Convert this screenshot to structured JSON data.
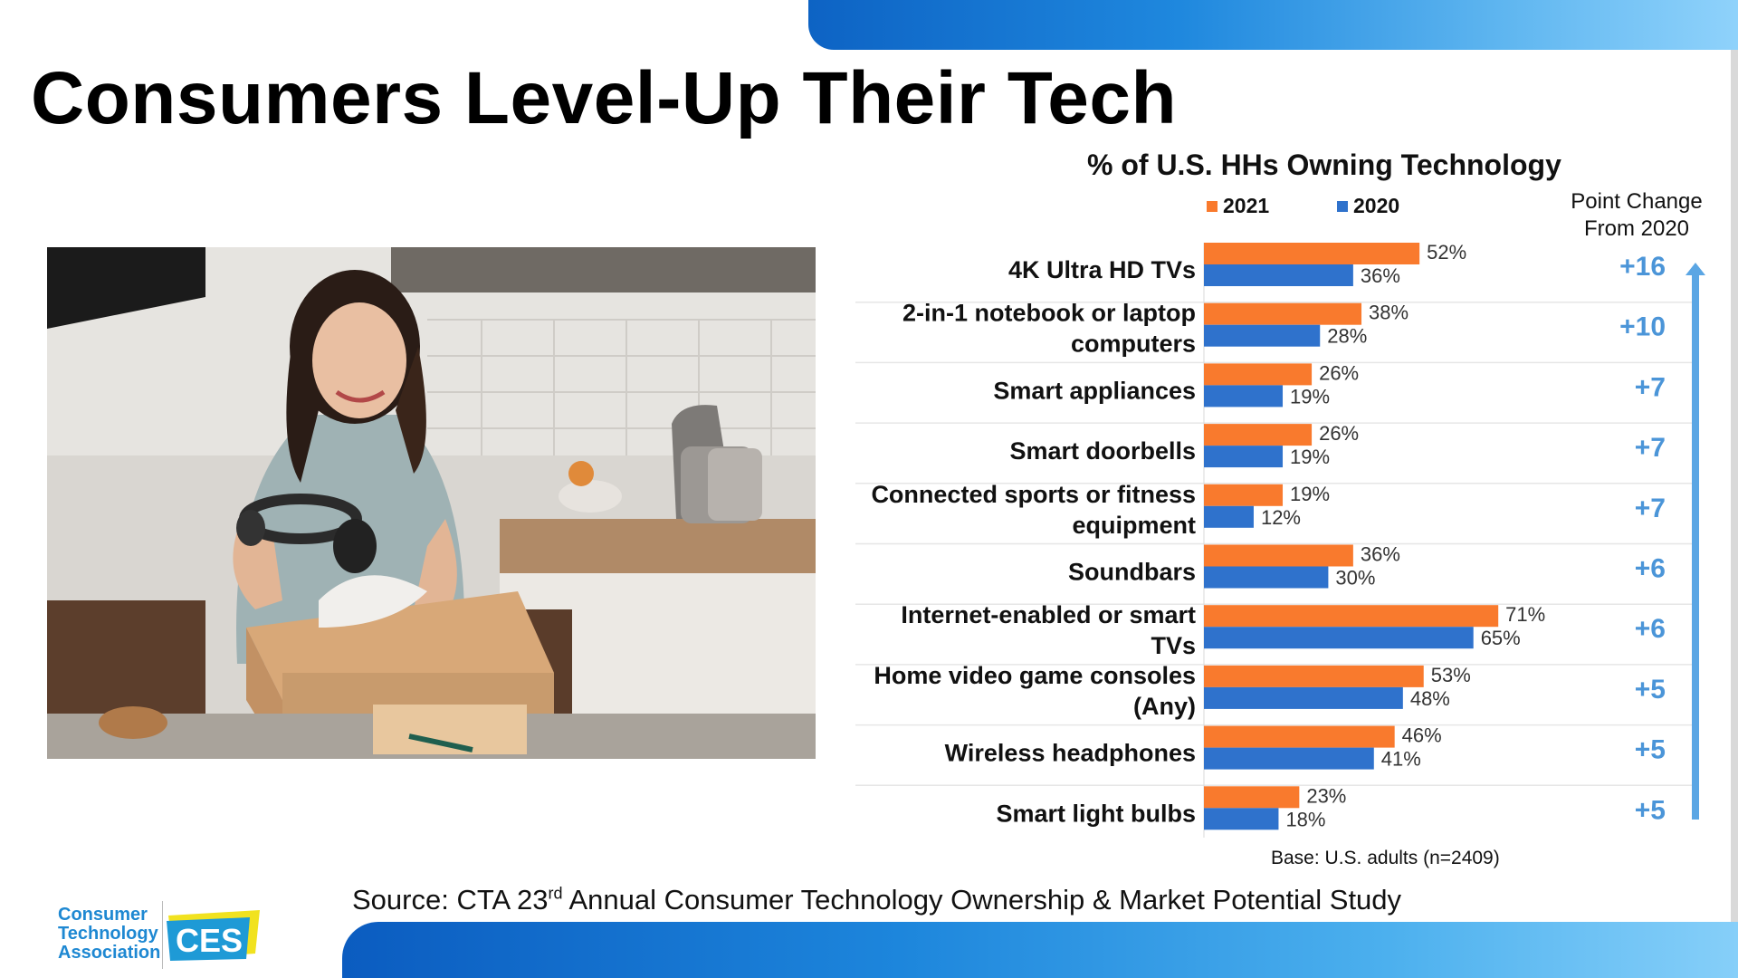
{
  "slide": {
    "title": "Consumers Level-Up Their Tech",
    "source_prefix": "Source: CTA 23",
    "source_sup": "rd",
    "source_suffix": " Annual Consumer Technology Ownership & Market Potential Study",
    "logo_lines": [
      "Consumer",
      "Technology",
      "Association"
    ],
    "logo_mark": "CES",
    "photo_icon": "person-unboxing-headphones-photo"
  },
  "colors": {
    "series_2021": "#f97a2d",
    "series_2020": "#2f72cc",
    "change_text": "#4b95d8",
    "arrow": "#5ba6e4"
  },
  "chart_data": {
    "type": "bar",
    "orientation": "horizontal",
    "title": "% of U.S. HHs Owning Technology",
    "categories": [
      [
        "4K Ultra HD TVs"
      ],
      [
        "2-in-1 notebook or laptop",
        "computers"
      ],
      [
        "Smart appliances"
      ],
      [
        "Smart doorbells"
      ],
      [
        "Connected sports or fitness",
        "equipment"
      ],
      [
        "Soundbars"
      ],
      [
        "Internet-enabled or smart",
        "TVs"
      ],
      [
        "Home video game consoles",
        "(Any)"
      ],
      [
        "Wireless headphones"
      ],
      [
        "Smart light bulbs"
      ]
    ],
    "series": [
      {
        "name": "2021",
        "values": [
          52,
          38,
          26,
          26,
          19,
          36,
          71,
          53,
          46,
          23
        ]
      },
      {
        "name": "2020",
        "values": [
          36,
          28,
          19,
          19,
          12,
          30,
          65,
          48,
          41,
          18
        ]
      }
    ],
    "value_suffix": "%",
    "point_change_header": [
      "Point Change",
      "From 2020"
    ],
    "point_change": [
      "+16",
      "+10",
      "+7",
      "+7",
      "+7",
      "+6",
      "+6",
      "+5",
      "+5",
      "+5"
    ],
    "base_note": "Base: U.S. adults (n=2409)",
    "xlim": [
      0,
      75
    ],
    "legend_position": "top"
  }
}
